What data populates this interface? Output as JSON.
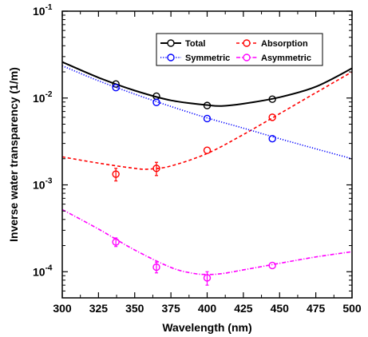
{
  "chart_data": {
    "type": "line",
    "xlabel": "Wavelength (nm)",
    "ylabel": "Inverse water transparency (1/m)",
    "xlim": [
      300,
      500
    ],
    "ylim": [
      5e-05,
      0.1
    ],
    "yscale": "log",
    "x_ticks": [
      300,
      325,
      350,
      375,
      400,
      425,
      450,
      475,
      500
    ],
    "x_tick_labels": [
      "300",
      "325",
      "350",
      "375",
      "400",
      "425",
      "450",
      "475",
      "500"
    ],
    "y_ticks": [
      0.0001,
      0.001,
      0.01,
      0.1
    ],
    "y_tick_labels": [
      {
        "base": "10",
        "exp": "-4"
      },
      {
        "base": "10",
        "exp": "-3"
      },
      {
        "base": "10",
        "exp": "-2"
      },
      {
        "base": "10",
        "exp": "-1"
      }
    ],
    "grid": false,
    "legend_position": "top-right",
    "series": [
      {
        "name": "Total",
        "color": "#000000",
        "line_style": "solid",
        "points": [
          {
            "x": 337,
            "y": 0.0145,
            "err": 0.0004
          },
          {
            "x": 365,
            "y": 0.0105,
            "err": 0.0003
          },
          {
            "x": 400,
            "y": 0.0082,
            "err": 0.0003
          },
          {
            "x": 445,
            "y": 0.0097,
            "err": 0.0003
          }
        ],
        "fit": [
          {
            "x": 300,
            "y": 0.026
          },
          {
            "x": 325,
            "y": 0.0172
          },
          {
            "x": 350,
            "y": 0.0122
          },
          {
            "x": 375,
            "y": 0.0094
          },
          {
            "x": 400,
            "y": 0.0083
          },
          {
            "x": 410,
            "y": 0.0081
          },
          {
            "x": 425,
            "y": 0.0086
          },
          {
            "x": 450,
            "y": 0.0102
          },
          {
            "x": 475,
            "y": 0.0135
          },
          {
            "x": 500,
            "y": 0.022
          }
        ]
      },
      {
        "name": "Absorption",
        "color": "#ff0000",
        "line_style": "dashed",
        "points": [
          {
            "x": 337,
            "y": 0.00133,
            "err": 0.00022
          },
          {
            "x": 365,
            "y": 0.00155,
            "err": 0.00027
          },
          {
            "x": 400,
            "y": 0.0025,
            "err": 0.00025
          },
          {
            "x": 445,
            "y": 0.006,
            "err": 0.0004
          }
        ],
        "fit": [
          {
            "x": 300,
            "y": 0.0021
          },
          {
            "x": 325,
            "y": 0.00178
          },
          {
            "x": 350,
            "y": 0.00155
          },
          {
            "x": 360,
            "y": 0.00152
          },
          {
            "x": 375,
            "y": 0.00165
          },
          {
            "x": 400,
            "y": 0.0023
          },
          {
            "x": 425,
            "y": 0.0038
          },
          {
            "x": 450,
            "y": 0.0066
          },
          {
            "x": 475,
            "y": 0.0115
          },
          {
            "x": 500,
            "y": 0.02
          }
        ]
      },
      {
        "name": "Symmetric",
        "color": "#0000ff",
        "line_style": "dotted",
        "points": [
          {
            "x": 337,
            "y": 0.0132,
            "err": 0.0004
          },
          {
            "x": 365,
            "y": 0.0089,
            "err": 0.0003
          },
          {
            "x": 400,
            "y": 0.0058,
            "err": 0.0002
          },
          {
            "x": 445,
            "y": 0.0034,
            "err": 0.0001
          }
        ],
        "fit": [
          {
            "x": 300,
            "y": 0.0235
          },
          {
            "x": 325,
            "y": 0.0158
          },
          {
            "x": 350,
            "y": 0.0111
          },
          {
            "x": 375,
            "y": 0.008
          },
          {
            "x": 400,
            "y": 0.0059
          },
          {
            "x": 425,
            "y": 0.0045
          },
          {
            "x": 450,
            "y": 0.0034
          },
          {
            "x": 475,
            "y": 0.0026
          },
          {
            "x": 500,
            "y": 0.002
          }
        ]
      },
      {
        "name": "Asymmetric",
        "color": "#ff00ff",
        "line_style": "dashdot",
        "points": [
          {
            "x": 337,
            "y": 0.00022,
            "err": 2.5e-05
          },
          {
            "x": 365,
            "y": 0.000113,
            "err": 1.6e-05
          },
          {
            "x": 400,
            "y": 8.5e-05,
            "err": 1.5e-05
          },
          {
            "x": 445,
            "y": 0.000118,
            "err": 9e-06
          }
        ],
        "fit": [
          {
            "x": 300,
            "y": 0.00052
          },
          {
            "x": 325,
            "y": 0.00031
          },
          {
            "x": 350,
            "y": 0.000178
          },
          {
            "x": 375,
            "y": 0.000112
          },
          {
            "x": 390,
            "y": 9.6e-05
          },
          {
            "x": 400,
            "y": 9.3e-05
          },
          {
            "x": 410,
            "y": 9.5e-05
          },
          {
            "x": 425,
            "y": 0.000105
          },
          {
            "x": 450,
            "y": 0.000125
          },
          {
            "x": 475,
            "y": 0.000148
          },
          {
            "x": 500,
            "y": 0.00017
          }
        ]
      }
    ],
    "legend_layout": [
      [
        "Total",
        "Absorption"
      ],
      [
        "Symmetric",
        "Asymmetric"
      ]
    ]
  }
}
